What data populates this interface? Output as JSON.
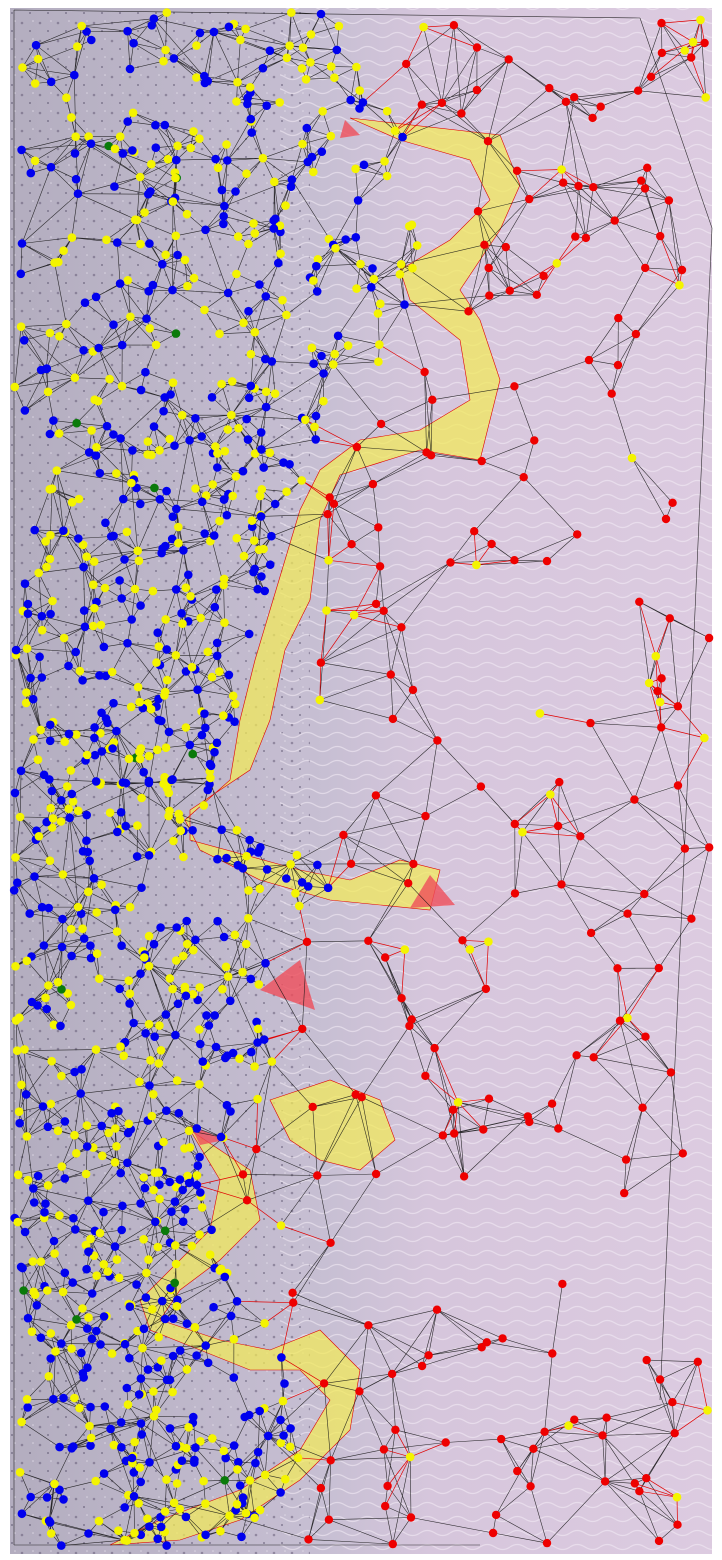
{
  "image": {
    "kind": "histology-cell-graph",
    "description_colors": {
      "tissue_left": "#b9b3c6",
      "tissue_right": "#d9c8de",
      "background": "#ffffff",
      "edge": "#111111",
      "boundary_edge": "#e00000",
      "region_fill_yellow": "#f2ea58",
      "region_fill_red": "#ef4d5a"
    },
    "node_classes": [
      {
        "id": "blue",
        "color": "#0000ee"
      },
      {
        "id": "yellow",
        "color": "#f4f400"
      },
      {
        "id": "red",
        "color": "#ee0000"
      },
      {
        "id": "green",
        "color": "#0a7a0a"
      }
    ]
  }
}
